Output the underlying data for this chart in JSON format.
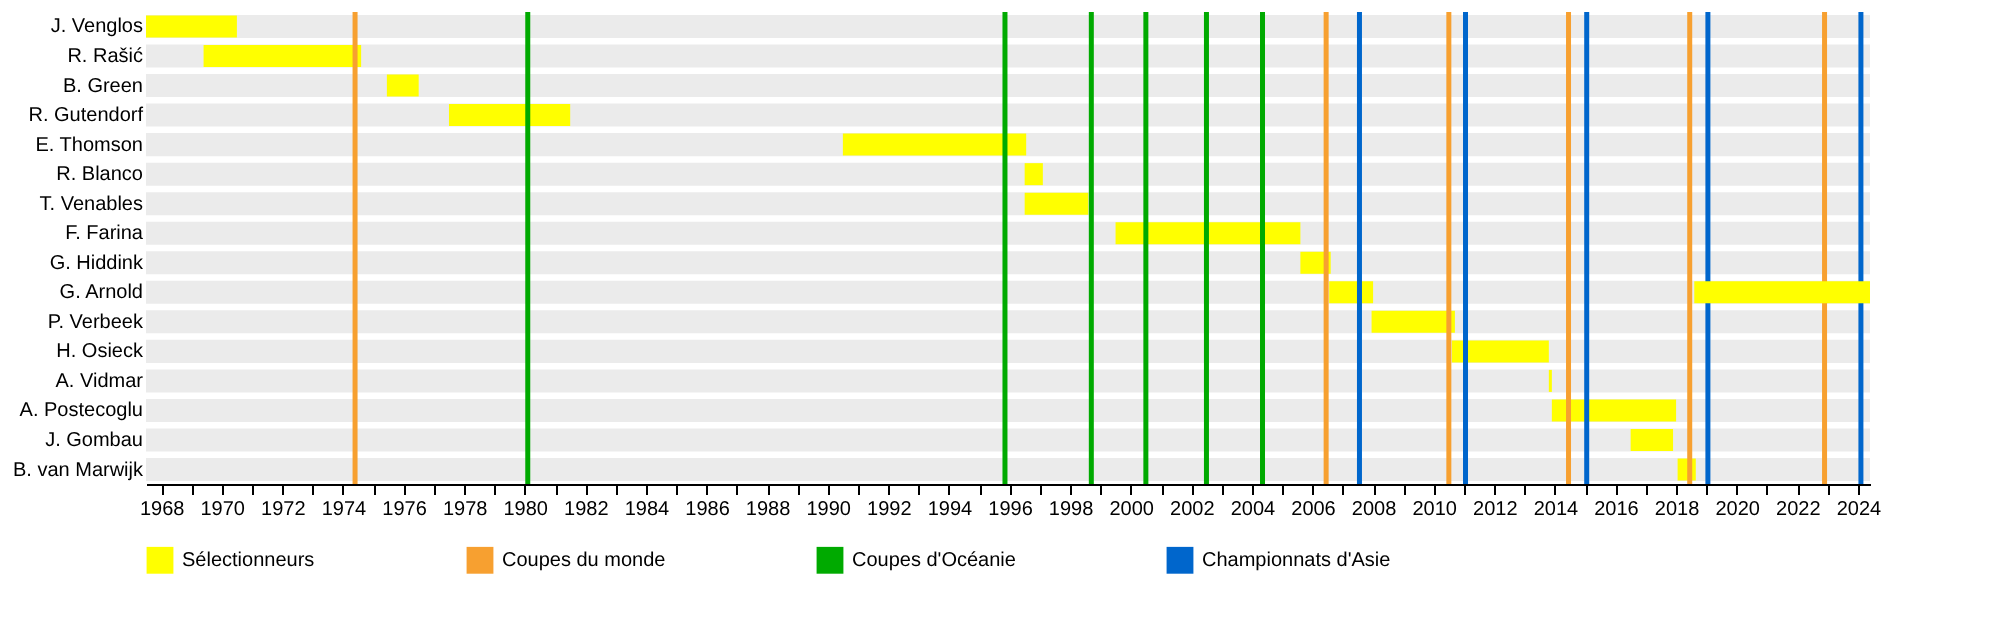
{
  "chart_data": {
    "type": "bar",
    "orientation": "horizontal",
    "categories": [
      "J. Venglos",
      "R. Rašić",
      "B. Green",
      "R. Gutendorf",
      "E. Thomson",
      "R. Blanco",
      "T. Venables",
      "F. Farina",
      "G. Hiddink",
      "G. Arnold",
      "P. Verbeek",
      "H. Osieck",
      "A. Vidmar",
      "A. Postecoglu",
      "J. Gombau",
      "B. van Marwijk"
    ],
    "series": [
      {
        "name": "Sélectionneurs",
        "color": "#ffff00",
        "base": [
          1967.5,
          1969.4,
          1975.45,
          1977.5,
          1990.5,
          1996.5,
          1996.5,
          1999.5,
          2005.6,
          2006.55,
          2007.95,
          2010.6,
          2013.8,
          2013.9,
          2016.5,
          2018.05
        ],
        "values": [
          3.0,
          5.2,
          1.05,
          4.0,
          6.05,
          0.6,
          2.1,
          6.1,
          1.0,
          1.45,
          2.75,
          3.2,
          0.1,
          4.1,
          1.4,
          0.6
        ]
      },
      {
        "color": "#ffff00",
        "base": [
          null,
          null,
          null,
          null,
          null,
          null,
          null,
          null,
          null,
          2018.6,
          null,
          null,
          null,
          null,
          null,
          null
        ],
        "values": [
          null,
          null,
          null,
          null,
          null,
          null,
          null,
          null,
          null,
          5.8,
          null,
          null,
          null,
          null,
          null,
          null
        ]
      }
    ],
    "xlim": [
      1967.5,
      2024.4
    ],
    "xticks": [
      1968,
      {
        "value": 1969,
        "label": null
      },
      1970,
      {
        "value": 1971,
        "label": null
      },
      1972,
      {
        "value": 1973,
        "label": null
      },
      1974,
      {
        "value": 1975,
        "label": null
      },
      1976,
      {
        "value": 1977,
        "label": null
      },
      1978,
      {
        "value": 1979,
        "label": null
      },
      1980,
      {
        "value": 1981,
        "label": null
      },
      1982,
      {
        "value": 1983,
        "label": null
      },
      1984,
      {
        "value": 1985,
        "label": null
      },
      1986,
      {
        "value": 1987,
        "label": null
      },
      1988,
      {
        "value": 1989,
        "label": null
      },
      1990,
      {
        "value": 1991,
        "label": null
      },
      1992,
      {
        "value": 1993,
        "label": null
      },
      1994,
      {
        "value": 1995,
        "label": null
      },
      1996,
      {
        "value": 1997,
        "label": null
      },
      1998,
      {
        "value": 1999,
        "label": null
      },
      2000,
      {
        "value": 2001,
        "label": null
      },
      2002,
      {
        "value": 2003,
        "label": null
      },
      2004,
      {
        "value": 2005,
        "label": null
      },
      2006,
      {
        "value": 2007,
        "label": null
      },
      2008,
      {
        "value": 2009,
        "label": null
      },
      2010,
      {
        "value": 2011,
        "label": null
      },
      2012,
      {
        "value": 2013,
        "label": null
      },
      2014,
      {
        "value": 2015,
        "label": null
      },
      2016,
      {
        "value": 2017,
        "label": null
      },
      2018,
      {
        "value": 2019,
        "label": null
      },
      2020,
      {
        "value": 2021,
        "label": null
      },
      2022,
      {
        "value": 2023,
        "label": null
      },
      2024
    ],
    "ref_lines": [
      {
        "axis": "x",
        "value": 1974.4,
        "label": "Coupes du monde",
        "color": "#f7a030"
      },
      {
        "axis": "x",
        "value": 2006.45,
        "color": "#f7a030"
      },
      {
        "axis": "x",
        "value": 2010.5,
        "color": "#f7a030"
      },
      {
        "axis": "x",
        "value": 2014.45,
        "color": "#f7a030"
      },
      {
        "axis": "x",
        "value": 2018.45,
        "color": "#f7a030"
      },
      {
        "axis": "x",
        "value": 2022.9,
        "color": "#f7a030"
      },
      {
        "axis": "x",
        "value": 1980.1,
        "label": "Coupes d'Océanie",
        "color": "#00aa00"
      },
      {
        "axis": "x",
        "value": 1995.85,
        "color": "#00aa00"
      },
      {
        "axis": "x",
        "value": 1998.7,
        "color": "#00aa00"
      },
      {
        "axis": "x",
        "value": 2000.5,
        "color": "#00aa00"
      },
      {
        "axis": "x",
        "value": 2002.5,
        "color": "#00aa00"
      },
      {
        "axis": "x",
        "value": 2004.35,
        "color": "#00aa00"
      },
      {
        "axis": "x",
        "value": 2007.55,
        "label": "Championnats d'Asie",
        "color": "#0066cc"
      },
      {
        "axis": "x",
        "value": 2011.05,
        "color": "#0066cc"
      },
      {
        "axis": "x",
        "value": 2015.05,
        "color": "#0066cc"
      },
      {
        "axis": "x",
        "value": 2019.05,
        "color": "#0066cc"
      },
      {
        "axis": "x",
        "value": 2024.1,
        "color": "#0066cc"
      }
    ],
    "grid": false,
    "legend": "bottom"
  }
}
